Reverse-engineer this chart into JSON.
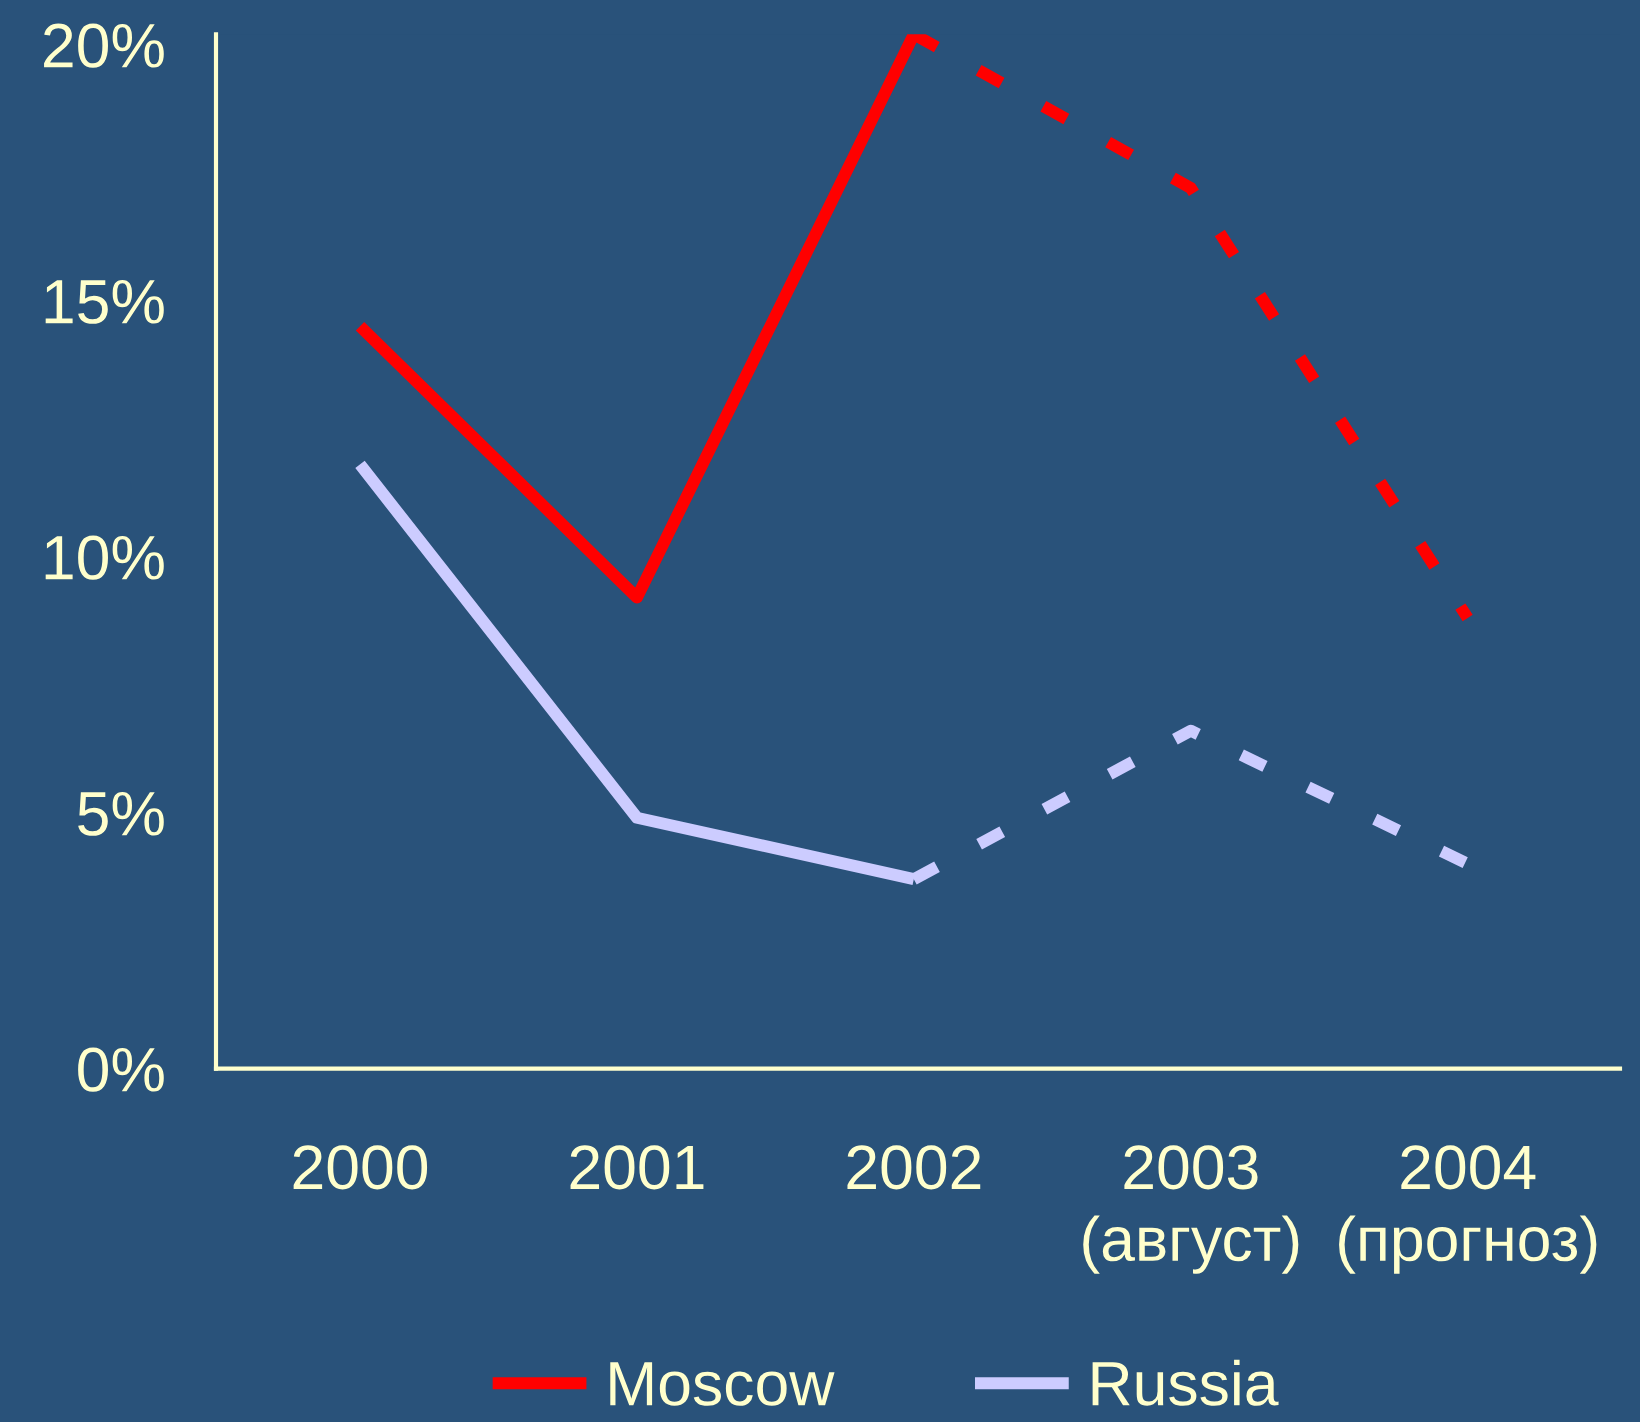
{
  "chart_data": {
    "type": "line",
    "categories": [
      "2000",
      "2001",
      "2002",
      "2003\n(август)",
      "2004\n(прогноз)"
    ],
    "series": [
      {
        "name": "Moscow",
        "color": "#ff0000",
        "line_style": "solid",
        "values": [
          14.5,
          9.2,
          20.2,
          null,
          null
        ]
      },
      {
        "color": "#ff0000",
        "line_style": "dashed",
        "values": [
          null,
          null,
          20.2,
          17.2,
          8.8
        ]
      },
      {
        "name": "Russia",
        "color": "#ccccff",
        "line_style": "solid",
        "values": [
          11.8,
          4.9,
          3.7,
          null,
          null
        ]
      },
      {
        "color": "#ccccff",
        "line_style": "dashed",
        "values": [
          null,
          null,
          3.7,
          6.6,
          4.0
        ]
      }
    ],
    "ylim": [
      0,
      20.2
    ],
    "yticks": [
      {
        "value": 0,
        "label": "0%"
      },
      {
        "value": 5,
        "label": "5%"
      },
      {
        "value": 10,
        "label": "10%"
      },
      {
        "value": 15,
        "label": "15%"
      },
      {
        "value": 20,
        "label": "20%"
      }
    ],
    "legend": "bottom"
  }
}
